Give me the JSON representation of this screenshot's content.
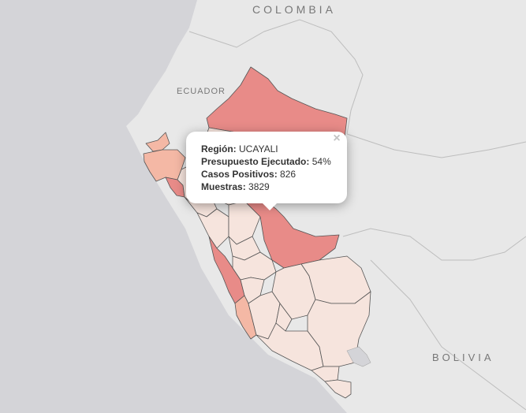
{
  "map": {
    "country_labels": {
      "colombia": "COLOMBIA",
      "ecuador": "ECUADOR",
      "bolivia": "BOLIVIA"
    },
    "colors": {
      "ocean": "#d4d4d8",
      "land": "#e8e8e8",
      "border": "#bbbbbb",
      "region_border": "#555555",
      "high": "#e88b88",
      "medium": "#f4b8a5",
      "low": "#f6e4dd"
    }
  },
  "popup": {
    "close_icon": "×",
    "rows": [
      {
        "label": "Región:",
        "value": "UCAYALI"
      },
      {
        "label": "Presupuesto Ejecutado:",
        "value": "54%"
      },
      {
        "label": "Casos Positivos:",
        "value": "826"
      },
      {
        "label": "Muestras:",
        "value": "3829"
      }
    ]
  }
}
